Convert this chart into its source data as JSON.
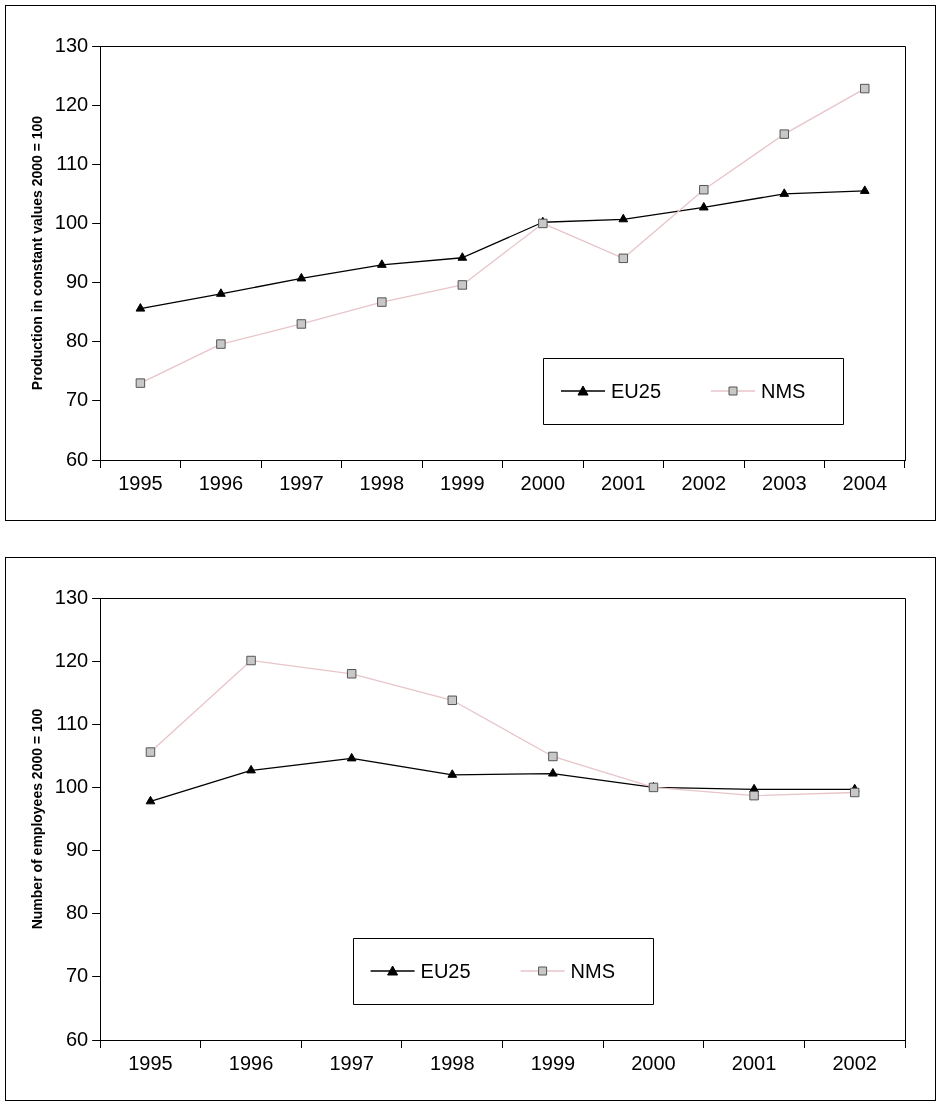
{
  "chart_data": [
    {
      "type": "line",
      "ylabel": "Production in constant values 2000 = 100",
      "categories": [
        "1995",
        "1996",
        "1997",
        "1998",
        "1999",
        "2000",
        "2001",
        "2002",
        "2003",
        "2004"
      ],
      "series": [
        {
          "name": "EU25",
          "color": "#000000",
          "marker": "triangle",
          "values": [
            85.6,
            88.1,
            90.7,
            93.0,
            94.2,
            100.2,
            100.7,
            102.7,
            105.0,
            105.5
          ]
        },
        {
          "name": "NMS",
          "color": "#e8c4c8",
          "marker": "square",
          "values": [
            73.0,
            79.6,
            83.0,
            86.7,
            89.6,
            100.0,
            94.1,
            105.7,
            115.1,
            122.8
          ]
        }
      ],
      "ylim": [
        60,
        130
      ],
      "yticks": [
        60,
        70,
        80,
        90,
        100,
        110,
        120,
        130
      ],
      "grid": false,
      "legend": "bottom right"
    },
    {
      "type": "line",
      "ylabel": "Number of employees 2000 = 100",
      "categories": [
        "1995",
        "1996",
        "1997",
        "1998",
        "1999",
        "2000",
        "2001",
        "2002"
      ],
      "series": [
        {
          "name": "EU25",
          "color": "#000000",
          "marker": "triangle",
          "values": [
            97.8,
            102.7,
            104.6,
            102.0,
            102.2,
            100.0,
            99.7,
            99.7
          ]
        },
        {
          "name": "NMS",
          "color": "#e8c4c8",
          "marker": "square",
          "values": [
            105.6,
            120.1,
            118.0,
            113.8,
            104.9,
            100.0,
            98.7,
            99.2
          ]
        }
      ],
      "ylim": [
        60,
        130
      ],
      "yticks": [
        60,
        70,
        80,
        90,
        100,
        110,
        120,
        130
      ],
      "grid": false,
      "legend": "bottom"
    }
  ]
}
